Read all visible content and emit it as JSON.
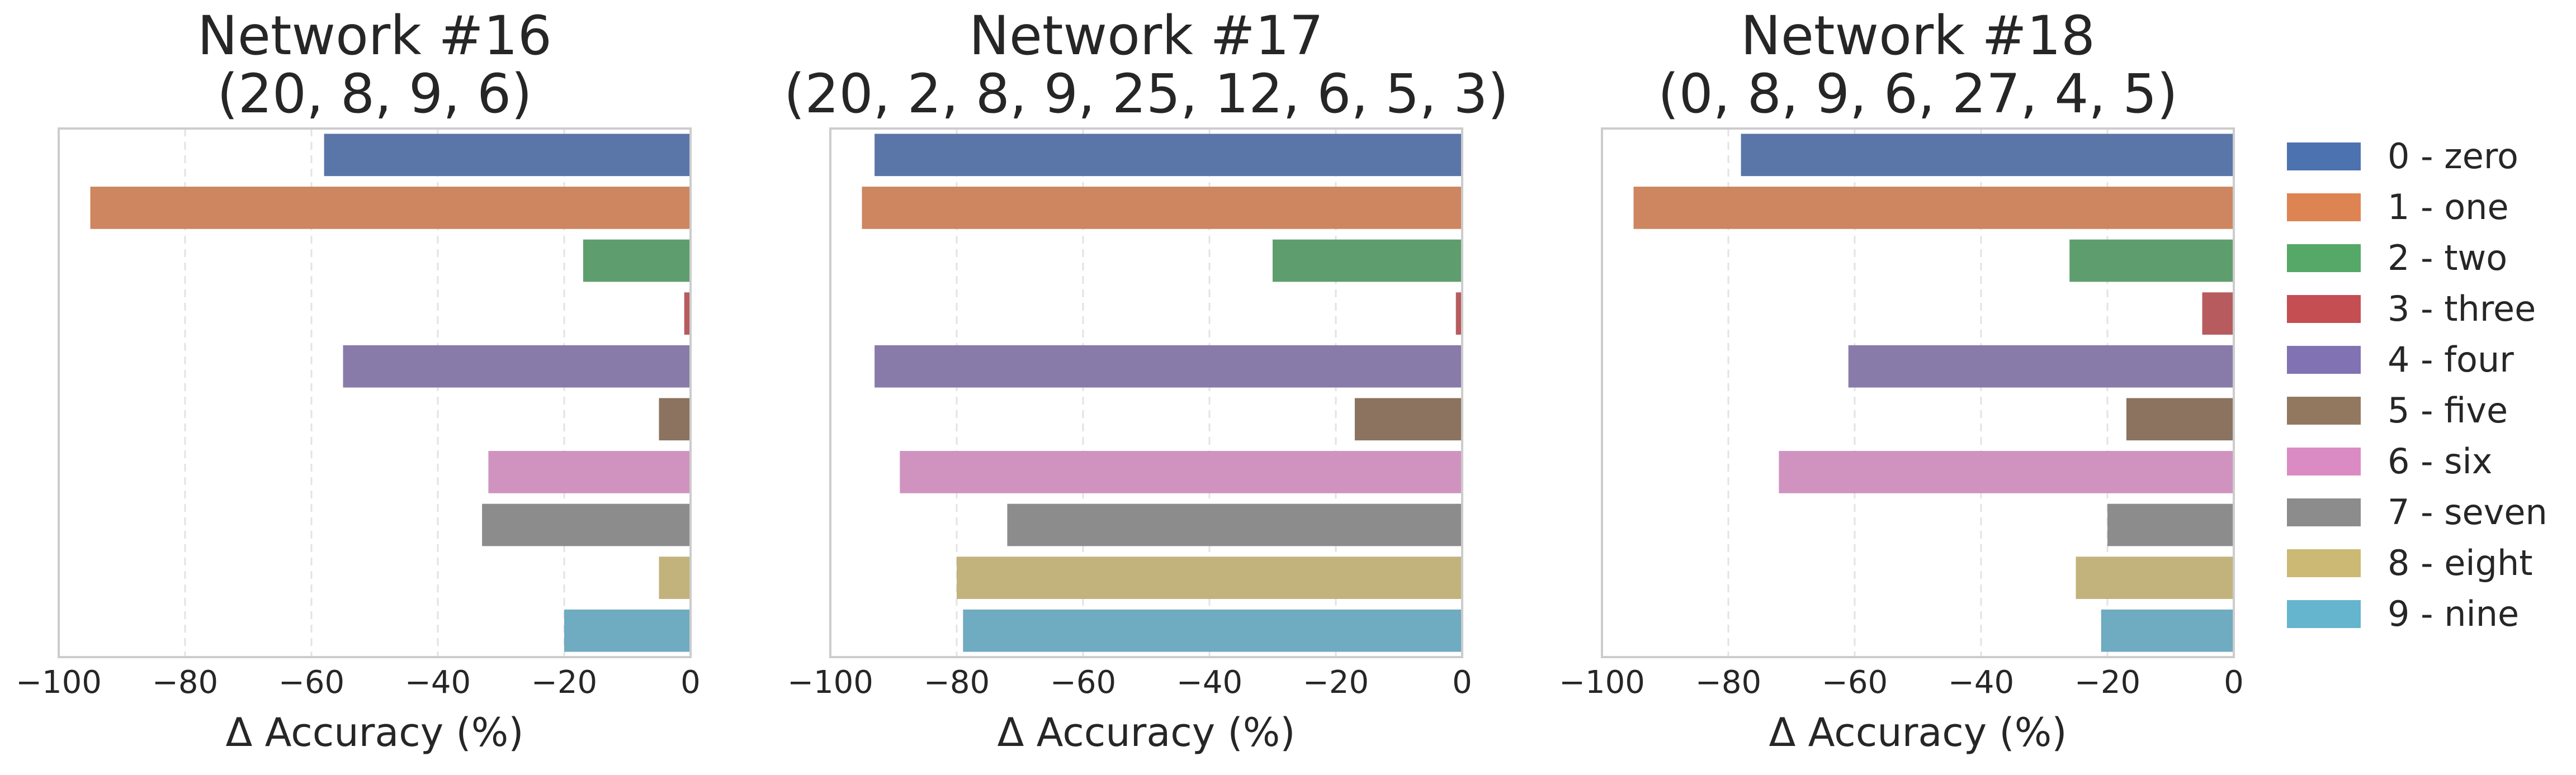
{
  "chart_data": [
    {
      "type": "bar",
      "orientation": "horizontal",
      "title_line1": "Network #16",
      "title_line2": "(20, 8, 9, 6)",
      "xlabel": "Δ Accuracy (%)",
      "xlim": [
        -100,
        0
      ],
      "xticks": [
        "−100",
        "−80",
        "−60",
        "−40",
        "−20",
        "0"
      ],
      "categories": [
        "0 - zero",
        "1 - one",
        "2 - two",
        "3 - three",
        "4 - four",
        "5 - five",
        "6 - six",
        "7 - seven",
        "8 - eight",
        "9 - nine"
      ],
      "values": [
        -58,
        -95,
        -17,
        -1,
        -55,
        -5,
        -32,
        -33,
        -5,
        -20
      ],
      "grid": "vertical-dashed"
    },
    {
      "type": "bar",
      "orientation": "horizontal",
      "title_line1": "Network #17",
      "title_line2": "(20, 2, 8, 9, 25, 12, 6, 5, 3)",
      "xlabel": "Δ Accuracy (%)",
      "xlim": [
        -100,
        0
      ],
      "xticks": [
        "−100",
        "−80",
        "−60",
        "−40",
        "−20",
        "0"
      ],
      "categories": [
        "0 - zero",
        "1 - one",
        "2 - two",
        "3 - three",
        "4 - four",
        "5 - five",
        "6 - six",
        "7 - seven",
        "8 - eight",
        "9 - nine"
      ],
      "values": [
        -93,
        -95,
        -30,
        -1,
        -93,
        -17,
        -89,
        -72,
        -80,
        -79
      ],
      "grid": "vertical-dashed"
    },
    {
      "type": "bar",
      "orientation": "horizontal",
      "title_line1": "Network #18",
      "title_line2": "(0, 8, 9, 6, 27, 4, 5)",
      "xlabel": "Δ Accuracy (%)",
      "xlim": [
        -100,
        0
      ],
      "xticks": [
        "−100",
        "−80",
        "−60",
        "−40",
        "−20",
        "0"
      ],
      "categories": [
        "0 - zero",
        "1 - one",
        "2 - two",
        "3 - three",
        "4 - four",
        "5 - five",
        "6 - six",
        "7 - seven",
        "8 - eight",
        "9 - nine"
      ],
      "values": [
        -78,
        -95,
        -26,
        -5,
        -61,
        -17,
        -72,
        -20,
        -25,
        -21
      ],
      "grid": "vertical-dashed"
    }
  ],
  "legend": {
    "placement": "right",
    "items": [
      {
        "label": "0 - zero",
        "color": "#4c72b0"
      },
      {
        "label": "1 - one",
        "color": "#dd8452"
      },
      {
        "label": "2 - two",
        "color": "#55a868"
      },
      {
        "label": "3 - three",
        "color": "#c44e52"
      },
      {
        "label": "4 - four",
        "color": "#8172b3"
      },
      {
        "label": "5 - five",
        "color": "#937860"
      },
      {
        "label": "6 - six",
        "color": "#da8bc3"
      },
      {
        "label": "7 - seven",
        "color": "#8c8c8c"
      },
      {
        "label": "8 - eight",
        "color": "#ccb974"
      },
      {
        "label": "9 - nine",
        "color": "#64b5cd"
      }
    ]
  },
  "bar_colors": [
    "#5a75a8",
    "#cd8660",
    "#5e9e6e",
    "#b75b5f",
    "#897ba9",
    "#8b735f",
    "#d093c0",
    "#8c8c8c",
    "#c2b27c",
    "#6fabc1"
  ],
  "axis_color": "#cccccc",
  "grid_color": "#e3e3e3",
  "text_color": "#262626"
}
